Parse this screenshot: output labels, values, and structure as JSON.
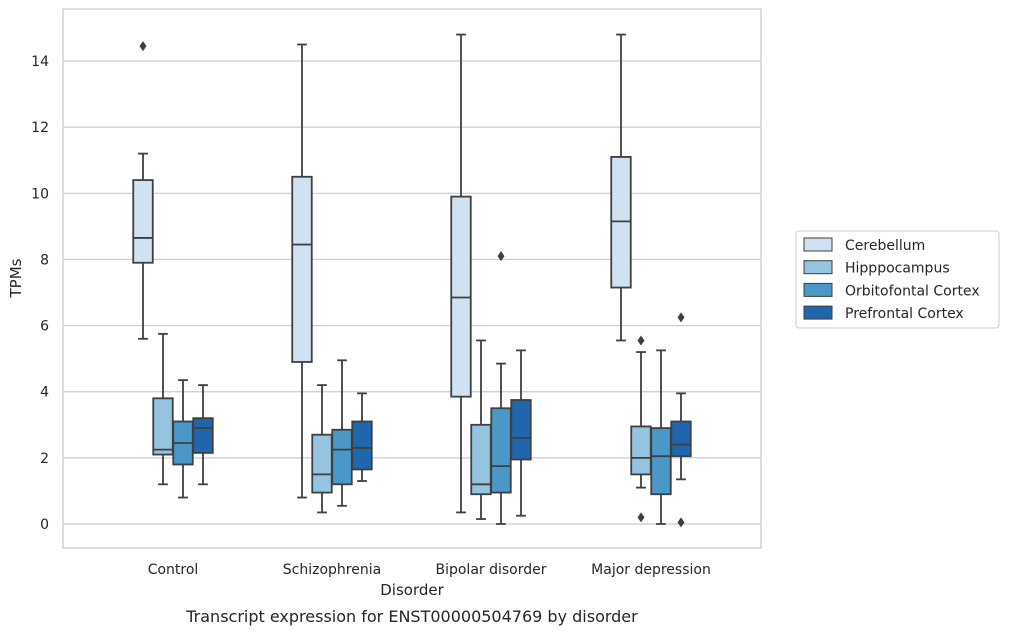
{
  "chart_data": {
    "type": "box",
    "title": "",
    "caption": "Transcript expression for ENST00000504769 by disorder",
    "xlabel": "Disorder",
    "ylabel": "TPMs",
    "ylim": [
      -0.7,
      15.6
    ],
    "yticks": [
      0,
      2,
      4,
      6,
      8,
      10,
      12,
      14
    ],
    "grid": "horizontal",
    "legend_position": "right",
    "categories": [
      "Control",
      "Schizophrenia",
      "Bipolar disorder",
      "Major depression"
    ],
    "series": [
      {
        "name": "Cerebellum",
        "color": "#d0e1f2",
        "boxes": [
          {
            "whislo": 5.6,
            "q1": 7.9,
            "med": 8.65,
            "q3": 10.4,
            "whishi": 11.2,
            "fliers": [
              14.45
            ]
          },
          {
            "whislo": 0.8,
            "q1": 4.9,
            "med": 8.45,
            "q3": 10.5,
            "whishi": 14.5,
            "fliers": []
          },
          {
            "whislo": 0.35,
            "q1": 3.85,
            "med": 6.85,
            "q3": 9.9,
            "whishi": 14.8,
            "fliers": []
          },
          {
            "whislo": 5.55,
            "q1": 7.15,
            "med": 9.15,
            "q3": 11.1,
            "whishi": 14.8,
            "fliers": []
          }
        ]
      },
      {
        "name": "Hipppocampus",
        "color": "#94c4df",
        "boxes": [
          {
            "whislo": 1.2,
            "q1": 2.1,
            "med": 2.25,
            "q3": 3.8,
            "whishi": 5.75,
            "fliers": []
          },
          {
            "whislo": 0.35,
            "q1": 0.95,
            "med": 1.5,
            "q3": 2.7,
            "whishi": 4.2,
            "fliers": []
          },
          {
            "whislo": 0.15,
            "q1": 0.9,
            "med": 1.2,
            "q3": 3.0,
            "whishi": 5.55,
            "fliers": []
          },
          {
            "whislo": 1.1,
            "q1": 1.5,
            "med": 2.0,
            "q3": 2.95,
            "whishi": 5.2,
            "fliers": [
              5.55,
              0.2
            ]
          }
        ]
      },
      {
        "name": "Orbitofontal Cortex",
        "color": "#4a98c9",
        "boxes": [
          {
            "whislo": 0.8,
            "q1": 1.8,
            "med": 2.45,
            "q3": 3.1,
            "whishi": 4.35,
            "fliers": []
          },
          {
            "whislo": 0.55,
            "q1": 1.2,
            "med": 2.25,
            "q3": 2.85,
            "whishi": 4.95,
            "fliers": []
          },
          {
            "whislo": 0.0,
            "q1": 0.95,
            "med": 1.75,
            "q3": 3.5,
            "whishi": 4.85,
            "fliers": [
              8.1
            ]
          },
          {
            "whislo": 0.0,
            "q1": 0.9,
            "med": 2.05,
            "q3": 2.9,
            "whishi": 5.25,
            "fliers": []
          }
        ]
      },
      {
        "name": "Prefrontal Cortex",
        "color": "#2066ac",
        "boxes": [
          {
            "whislo": 1.2,
            "q1": 2.15,
            "med": 2.9,
            "q3": 3.2,
            "whishi": 4.2,
            "fliers": []
          },
          {
            "whislo": 1.3,
            "q1": 1.65,
            "med": 2.3,
            "q3": 3.1,
            "whishi": 3.95,
            "fliers": []
          },
          {
            "whislo": 0.25,
            "q1": 1.95,
            "med": 2.6,
            "q3": 3.75,
            "whishi": 5.25,
            "fliers": []
          },
          {
            "whislo": 1.35,
            "q1": 2.05,
            "med": 2.4,
            "q3": 3.1,
            "whishi": 3.95,
            "fliers": [
              6.25,
              0.05
            ]
          }
        ]
      }
    ]
  }
}
